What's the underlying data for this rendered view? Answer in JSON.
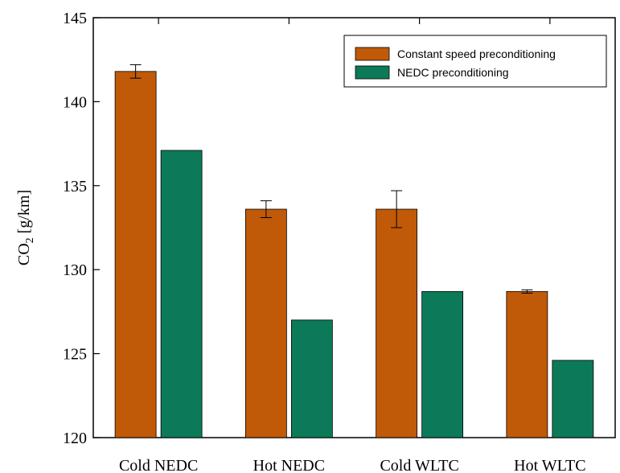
{
  "chart_data": {
    "type": "bar",
    "categories": [
      "Cold NEDC",
      "Hot NEDC",
      "Cold WLTC",
      "Hot WLTC"
    ],
    "series": [
      {
        "name": "Constant speed preconditioning",
        "values": [
          141.8,
          133.6,
          133.6,
          128.7
        ],
        "error": [
          0.4,
          0.5,
          1.1,
          0.1
        ],
        "color": "#c05a08"
      },
      {
        "name": "NEDC preconditioning",
        "values": [
          137.1,
          127.0,
          128.7,
          124.6
        ],
        "color": "#0c7a58"
      }
    ],
    "ylabel_main": "CO",
    "ylabel_sub": "2",
    "ylabel_unit": " [g/km]",
    "ylim": [
      120,
      145
    ],
    "yticks": [
      120,
      125,
      130,
      135,
      140,
      145
    ],
    "legend_position": "top-right",
    "grid": false
  }
}
